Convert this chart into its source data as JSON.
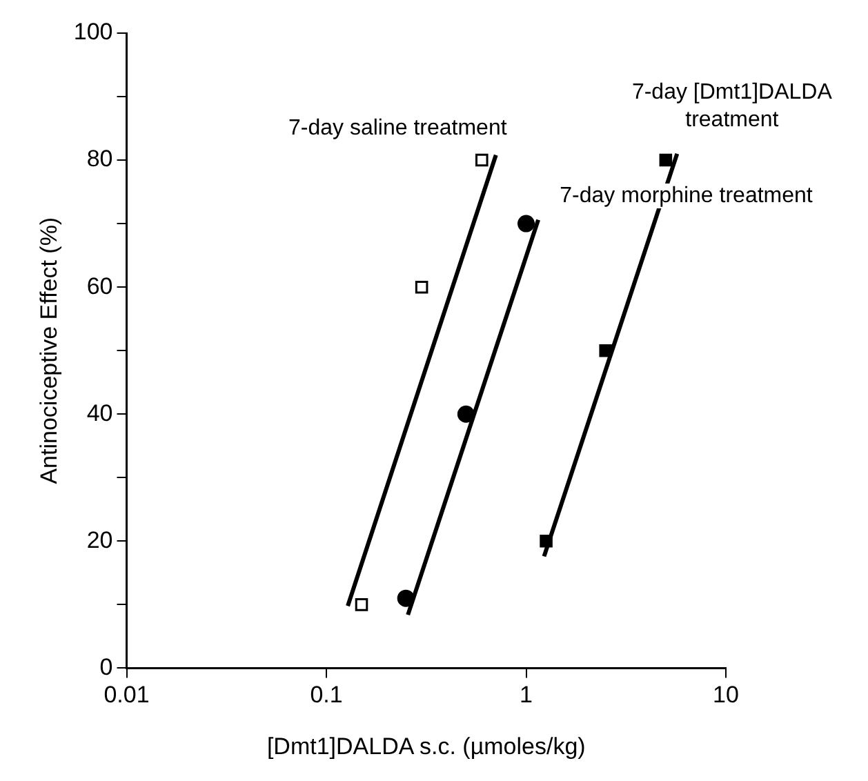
{
  "chart_data": {
    "type": "scatter",
    "xlabel": "[Dmt1]DALDA s.c. (µmoles/kg)",
    "ylabel": "Antinociceptive Effect (%)",
    "log": "x",
    "grid": false,
    "legend": false,
    "xlim": [
      0.01,
      10
    ],
    "xticks": [
      0.01,
      0.1,
      1,
      10
    ],
    "ylim": [
      0,
      100
    ],
    "yticks": [
      0,
      {
        "value": 10,
        "label": null
      },
      20,
      {
        "value": 30,
        "label": null
      },
      40,
      {
        "value": 50,
        "label": null
      },
      60,
      {
        "value": 70,
        "label": null
      },
      80,
      {
        "value": 90,
        "label": null
      },
      100
    ],
    "series": [
      {
        "type": "scatter",
        "name": "7-day saline treatment",
        "marker": "square",
        "color": "#ffffff",
        "x": [
          0.15,
          0.3,
          0.6
        ],
        "values": [
          10,
          60,
          80
        ]
      },
      {
        "type": "line",
        "marker": "none",
        "color": "#000000",
        "x": [
          0.128,
          0.706
        ],
        "values": [
          9.8,
          80.8
        ]
      },
      {
        "type": "scatter",
        "name": "7-day morphine treatment",
        "marker": "circle",
        "color": "#000000",
        "x": [
          0.25,
          0.5,
          1
        ],
        "values": [
          11,
          40,
          70
        ]
      },
      {
        "type": "line",
        "marker": "none",
        "color": "#000000",
        "x": [
          0.256,
          1.15
        ],
        "values": [
          8.4,
          70.6
        ]
      },
      {
        "type": "scatter",
        "name": "7-day [Dmt1]DALDA treatment",
        "marker": "square",
        "color": "#000000",
        "x": [
          1.26,
          2.5,
          5
        ],
        "values": [
          20,
          50,
          80
        ]
      },
      {
        "type": "line",
        "marker": "none",
        "color": "#000000",
        "x": [
          1.23,
          5.7
        ],
        "values": [
          17.6,
          81
        ]
      }
    ]
  }
}
